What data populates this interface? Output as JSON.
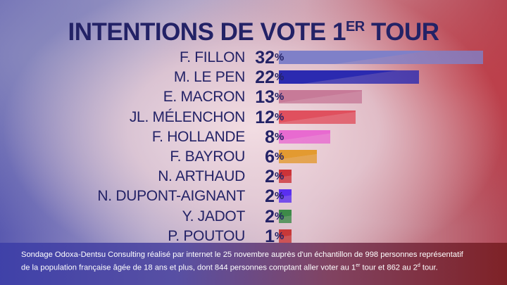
{
  "chart_data": {
    "type": "bar",
    "orientation": "horizontal",
    "title_main": "INTENTIONS DE VOTE 1",
    "title_sup": "ER",
    "title_end": " TOUR",
    "categories": [
      "F. FILLON",
      "M. LE PEN",
      "E. MACRON",
      "JL. MÉLENCHON",
      "F. HOLLANDE",
      "F. BAYROU",
      "N. ARTHAUD",
      "N. DUPONT-AIGNANT",
      "Y. JADOT",
      "P. POUTOU"
    ],
    "values": [
      32,
      22,
      13,
      12,
      8,
      6,
      2,
      2,
      2,
      1
    ],
    "unit": "%",
    "colors": [
      "#7f80c8",
      "#2b2ab0",
      "#c77a98",
      "#e0505e",
      "#e86ad0",
      "#e39a30",
      "#cc3338",
      "#5a2ff0",
      "#3d8a48",
      "#c83838"
    ],
    "xlim": [
      0,
      32
    ]
  },
  "footer": {
    "line1": "Sondage Odoxa-Dentsu Consulting réalisé par internet le 25 novembre auprès d'un échantillon de 998 personnes représentatif",
    "line2a": "de la population française âgée de 18 ans et plus, dont 844 personnes comptant aller voter au 1",
    "sup1": "er",
    "line2b": " tour et 862 au 2",
    "sup2": "d",
    "line2c": " tour."
  }
}
